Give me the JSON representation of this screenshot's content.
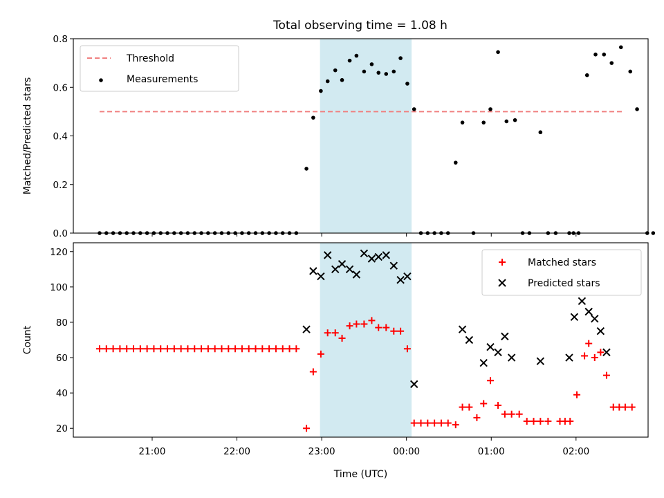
{
  "figure": {
    "title": "Total observing time = 1.08 h"
  },
  "chart_data": [
    {
      "type": "scatter",
      "title": "Total observing time = 1.08 h",
      "xlabel": "",
      "ylabel": "Matched/Predicted stars",
      "x_unit": "hours since 21:00 UTC",
      "xlim": [
        -0.93,
        5.85
      ],
      "ylim": [
        0,
        0.8
      ],
      "yticks": [
        0.0,
        0.2,
        0.4,
        0.6,
        0.8
      ],
      "ytick_labels": [
        "0.0",
        "0.2",
        "0.4",
        "0.6",
        "0.8"
      ],
      "legend": {
        "placement": "upper-left",
        "entries": [
          "Threshold",
          "Measurements"
        ]
      },
      "shaded_span": {
        "x": [
          1.98,
          3.06
        ],
        "color": "#add8e6"
      },
      "threshold": {
        "name": "Threshold",
        "value": 0.5,
        "x": [
          -0.62,
          5.54
        ],
        "color": "#f08080"
      },
      "series": [
        {
          "name": "Measurements",
          "marker": "dot",
          "color": "#000000",
          "points": [
            [
              -0.62,
              0
            ],
            [
              -0.54,
              0
            ],
            [
              -0.46,
              0
            ],
            [
              -0.38,
              0
            ],
            [
              -0.3,
              0
            ],
            [
              -0.22,
              0
            ],
            [
              -0.14,
              0
            ],
            [
              -0.06,
              0
            ],
            [
              0.02,
              0
            ],
            [
              0.1,
              0
            ],
            [
              0.18,
              0
            ],
            [
              0.26,
              0
            ],
            [
              0.34,
              0
            ],
            [
              0.42,
              0
            ],
            [
              0.5,
              0
            ],
            [
              0.58,
              0
            ],
            [
              0.66,
              0
            ],
            [
              0.74,
              0
            ],
            [
              0.82,
              0
            ],
            [
              0.9,
              0
            ],
            [
              0.98,
              0
            ],
            [
              1.06,
              0
            ],
            [
              1.14,
              0
            ],
            [
              1.22,
              0
            ],
            [
              1.3,
              0
            ],
            [
              1.38,
              0
            ],
            [
              1.46,
              0
            ],
            [
              1.54,
              0
            ],
            [
              1.62,
              0
            ],
            [
              1.7,
              0
            ],
            [
              1.82,
              0.265
            ],
            [
              1.9,
              0.475
            ],
            [
              1.99,
              0.585
            ],
            [
              2.07,
              0.625
            ],
            [
              2.16,
              0.67
            ],
            [
              2.24,
              0.63
            ],
            [
              2.33,
              0.71
            ],
            [
              2.41,
              0.73
            ],
            [
              2.5,
              0.665
            ],
            [
              2.59,
              0.695
            ],
            [
              2.67,
              0.66
            ],
            [
              2.76,
              0.655
            ],
            [
              2.85,
              0.665
            ],
            [
              2.93,
              0.72
            ],
            [
              3.01,
              0.615
            ],
            [
              3.09,
              0.51
            ],
            [
              3.17,
              0
            ],
            [
              3.25,
              0
            ],
            [
              3.33,
              0
            ],
            [
              3.41,
              0
            ],
            [
              3.49,
              0
            ],
            [
              3.58,
              0.29
            ],
            [
              3.66,
              0.455
            ],
            [
              3.79,
              0
            ],
            [
              3.91,
              0.455
            ],
            [
              3.99,
              0.51
            ],
            [
              4.08,
              0.745
            ],
            [
              4.18,
              0.46
            ],
            [
              4.28,
              0.465
            ],
            [
              4.37,
              0
            ],
            [
              4.45,
              0
            ],
            [
              4.58,
              0.415
            ],
            [
              4.67,
              0
            ],
            [
              4.76,
              0
            ],
            [
              4.92,
              0
            ],
            [
              4.97,
              0
            ],
            [
              5.03,
              0
            ],
            [
              5.13,
              0.65
            ],
            [
              5.23,
              0.735
            ],
            [
              5.33,
              0.735
            ],
            [
              5.42,
              0.7
            ],
            [
              5.53,
              0.765
            ],
            [
              5.64,
              0.665
            ],
            [
              5.72,
              0.51
            ],
            [
              5.84,
              0
            ],
            [
              5.91,
              0
            ]
          ]
        }
      ]
    },
    {
      "type": "scatter",
      "title": "",
      "xlabel": "Time (UTC)",
      "ylabel": "Count",
      "x_unit": "hours since 21:00 UTC",
      "xlim": [
        -0.93,
        5.85
      ],
      "ylim": [
        15,
        125
      ],
      "yticks": [
        20,
        40,
        60,
        80,
        100,
        120
      ],
      "ytick_labels": [
        "20",
        "40",
        "60",
        "80",
        "100",
        "120"
      ],
      "xticks": [
        0,
        1,
        2,
        3,
        4,
        5
      ],
      "xtick_labels": [
        "21:00",
        "22:00",
        "23:00",
        "00:00",
        "01:00",
        "02:00"
      ],
      "legend": {
        "placement": "upper-right",
        "entries": [
          "Matched stars",
          "Predicted stars"
        ]
      },
      "shaded_span": {
        "x": [
          1.98,
          3.06
        ],
        "color": "#add8e6"
      },
      "series": [
        {
          "name": "Matched stars",
          "marker": "plus",
          "color": "#ff0000",
          "points": [
            [
              -0.62,
              65
            ],
            [
              -0.54,
              65
            ],
            [
              -0.46,
              65
            ],
            [
              -0.38,
              65
            ],
            [
              -0.3,
              65
            ],
            [
              -0.22,
              65
            ],
            [
              -0.14,
              65
            ],
            [
              -0.06,
              65
            ],
            [
              0.02,
              65
            ],
            [
              0.1,
              65
            ],
            [
              0.18,
              65
            ],
            [
              0.26,
              65
            ],
            [
              0.34,
              65
            ],
            [
              0.42,
              65
            ],
            [
              0.5,
              65
            ],
            [
              0.58,
              65
            ],
            [
              0.66,
              65
            ],
            [
              0.74,
              65
            ],
            [
              0.82,
              65
            ],
            [
              0.9,
              65
            ],
            [
              0.98,
              65
            ],
            [
              1.06,
              65
            ],
            [
              1.14,
              65
            ],
            [
              1.22,
              65
            ],
            [
              1.3,
              65
            ],
            [
              1.38,
              65
            ],
            [
              1.46,
              65
            ],
            [
              1.54,
              65
            ],
            [
              1.62,
              65
            ],
            [
              1.7,
              65
            ],
            [
              1.82,
              20
            ],
            [
              1.9,
              52
            ],
            [
              1.99,
              62
            ],
            [
              2.07,
              74
            ],
            [
              2.16,
              74
            ],
            [
              2.24,
              71
            ],
            [
              2.33,
              78
            ],
            [
              2.41,
              79
            ],
            [
              2.5,
              79
            ],
            [
              2.59,
              81
            ],
            [
              2.67,
              77
            ],
            [
              2.76,
              77
            ],
            [
              2.85,
              75
            ],
            [
              2.93,
              75
            ],
            [
              3.01,
              65
            ],
            [
              3.09,
              23
            ],
            [
              3.17,
              23
            ],
            [
              3.25,
              23
            ],
            [
              3.33,
              23
            ],
            [
              3.41,
              23
            ],
            [
              3.49,
              23
            ],
            [
              3.58,
              22
            ],
            [
              3.66,
              32
            ],
            [
              3.74,
              32
            ],
            [
              3.83,
              26
            ],
            [
              3.91,
              34
            ],
            [
              3.99,
              47
            ],
            [
              4.08,
              33
            ],
            [
              4.16,
              28
            ],
            [
              4.24,
              28
            ],
            [
              4.33,
              28
            ],
            [
              4.42,
              24
            ],
            [
              4.5,
              24
            ],
            [
              4.58,
              24
            ],
            [
              4.67,
              24
            ],
            [
              4.81,
              24
            ],
            [
              4.87,
              24
            ],
            [
              4.93,
              24
            ],
            [
              5.01,
              39
            ],
            [
              5.1,
              61
            ],
            [
              5.15,
              68
            ],
            [
              5.22,
              60
            ],
            [
              5.29,
              63
            ],
            [
              5.36,
              50
            ],
            [
              5.44,
              32
            ],
            [
              5.51,
              32
            ],
            [
              5.58,
              32
            ],
            [
              5.66,
              32
            ]
          ]
        },
        {
          "name": "Predicted stars",
          "marker": "x",
          "color": "#000000",
          "points": [
            [
              1.82,
              76
            ],
            [
              1.9,
              109
            ],
            [
              1.99,
              106
            ],
            [
              2.07,
              118
            ],
            [
              2.16,
              110
            ],
            [
              2.24,
              113
            ],
            [
              2.33,
              110
            ],
            [
              2.41,
              107
            ],
            [
              2.5,
              119
            ],
            [
              2.59,
              116
            ],
            [
              2.67,
              117
            ],
            [
              2.76,
              118
            ],
            [
              2.85,
              112
            ],
            [
              2.93,
              104
            ],
            [
              3.01,
              106
            ],
            [
              3.09,
              45
            ],
            [
              3.66,
              76
            ],
            [
              3.74,
              70
            ],
            [
              3.91,
              57
            ],
            [
              3.99,
              66
            ],
            [
              4.08,
              63
            ],
            [
              4.16,
              72
            ],
            [
              4.24,
              60
            ],
            [
              4.58,
              58
            ],
            [
              4.92,
              60
            ],
            [
              4.98,
              83
            ],
            [
              5.07,
              92
            ],
            [
              5.15,
              86
            ],
            [
              5.22,
              82
            ],
            [
              5.29,
              75
            ],
            [
              5.36,
              63
            ]
          ]
        }
      ]
    }
  ]
}
